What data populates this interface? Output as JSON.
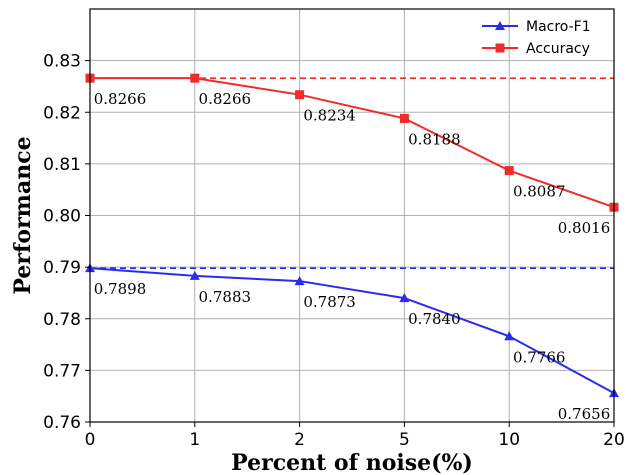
{
  "chart_data": {
    "type": "line",
    "title": "",
    "xlabel": "Percent of noise(%)",
    "ylabel": "Performance",
    "categories": [
      "0",
      "1",
      "2",
      "5",
      "10",
      "20"
    ],
    "ylim": [
      0.76,
      0.84
    ],
    "yticks": [
      "0.76",
      "0.77",
      "0.78",
      "0.79",
      "0.80",
      "0.81",
      "0.82",
      "0.83"
    ],
    "grid": true,
    "legend_position": "top-right",
    "series": [
      {
        "name": "Macro-F1",
        "color": "#2b2bf0",
        "marker": "triangle",
        "values": [
          0.7898,
          0.7883,
          0.7873,
          0.784,
          0.7766,
          0.7656
        ],
        "labels": [
          "0.7898",
          "0.7883",
          "0.7873",
          "0.7840",
          "0.7766",
          "0.7656"
        ],
        "baseline": 0.7898
      },
      {
        "name": "Accuracy",
        "color": "#f02b2b",
        "marker": "square",
        "values": [
          0.8266,
          0.8266,
          0.8234,
          0.8188,
          0.8087,
          0.8016
        ],
        "labels": [
          "0.8266",
          "0.8266",
          "0.8234",
          "0.8188",
          "0.8087",
          "0.8016"
        ],
        "baseline": 0.8266
      }
    ]
  }
}
